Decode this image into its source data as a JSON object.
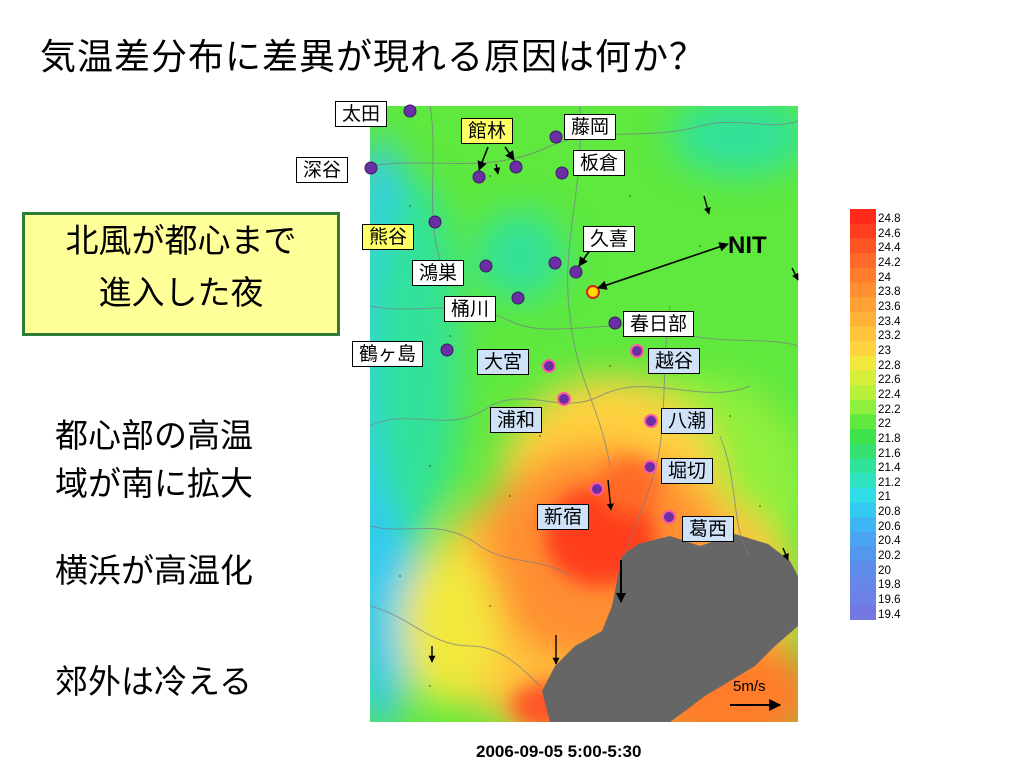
{
  "title": "気温差分布に差異が現れる原因は何か？",
  "callout": {
    "line1": "北風が都心まで",
    "line2": "進入した夜"
  },
  "notes": {
    "line1": "都心部の高温",
    "line2": "域が南に拡大",
    "yokohama": "横浜が高温化",
    "suburbs": "郊外は冷える"
  },
  "map": {
    "nit_label": "NIT",
    "scale_label": "5m/s",
    "timestamp": "2006-09-05 5:00-5:30",
    "stations": [
      {
        "id": "ota",
        "name": "太田",
        "style": "white"
      },
      {
        "id": "tatebayashi",
        "name": "館林",
        "style": "yellow"
      },
      {
        "id": "fujioka",
        "name": "藤岡",
        "style": "white"
      },
      {
        "id": "fukaya",
        "name": "深谷",
        "style": "white"
      },
      {
        "id": "itakura",
        "name": "板倉",
        "style": "white"
      },
      {
        "id": "kumagaya",
        "name": "熊谷",
        "style": "yellow"
      },
      {
        "id": "kuki",
        "name": "久喜",
        "style": "white"
      },
      {
        "id": "konosu",
        "name": "鴻巣",
        "style": "white"
      },
      {
        "id": "okegawa",
        "name": "桶川",
        "style": "white"
      },
      {
        "id": "kasukabe",
        "name": "春日部",
        "style": "white"
      },
      {
        "id": "tsurugashima",
        "name": "鶴ヶ島",
        "style": "white"
      },
      {
        "id": "omiya",
        "name": "大宮",
        "style": "blue"
      },
      {
        "id": "koshigaya",
        "name": "越谷",
        "style": "blue"
      },
      {
        "id": "urawa",
        "name": "浦和",
        "style": "blue"
      },
      {
        "id": "yashio",
        "name": "八潮",
        "style": "blue"
      },
      {
        "id": "horikiri",
        "name": "堀切",
        "style": "blue"
      },
      {
        "id": "shinjuku",
        "name": "新宿",
        "style": "blue"
      },
      {
        "id": "kasai",
        "name": "葛西",
        "style": "blue"
      }
    ]
  },
  "legend": {
    "values": [
      "24.8",
      "24.6",
      "24.4",
      "24.2",
      "24",
      "23.8",
      "23.6",
      "23.4",
      "23.2",
      "23",
      "22.8",
      "22.6",
      "22.4",
      "22.2",
      "22",
      "21.8",
      "21.6",
      "21.4",
      "21.2",
      "21",
      "20.8",
      "20.6",
      "20.4",
      "20.2",
      "20",
      "19.8",
      "19.6",
      "19.4"
    ],
    "colors": [
      "#ff2a1a",
      "#ff3d1f",
      "#ff5525",
      "#ff6a28",
      "#ff7d2c",
      "#ff8f30",
      "#ffa034",
      "#ffb238",
      "#ffc43c",
      "#ffd23f",
      "#f2e83c",
      "#d4ee3a",
      "#b8f03a",
      "#8fef3e",
      "#5fe83e",
      "#3ee24a",
      "#33e070",
      "#30e29a",
      "#2fe2c0",
      "#2fdde6",
      "#33caf2",
      "#3eb6f4",
      "#4aa4f2",
      "#5596ef",
      "#5e8ceb",
      "#6686e8",
      "#6d80e4",
      "#7378e0"
    ]
  }
}
